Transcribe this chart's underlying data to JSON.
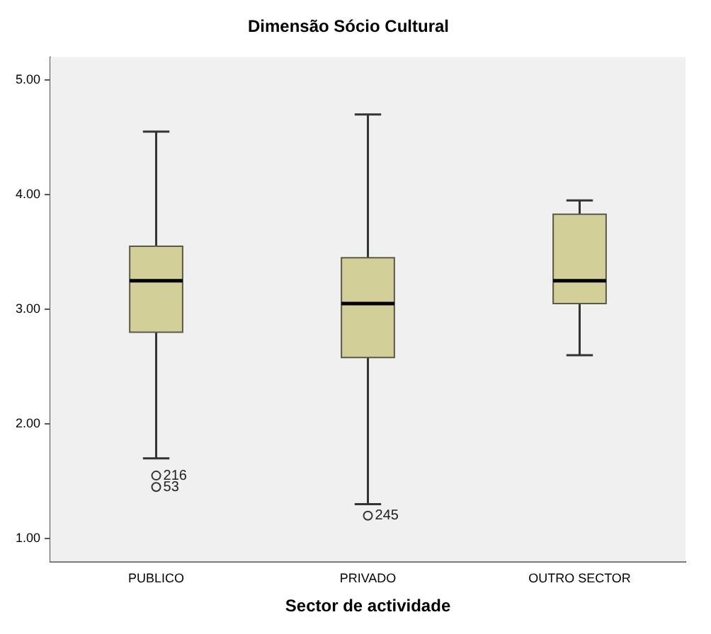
{
  "chart_data": {
    "type": "box",
    "title": "Dimensão Sócio Cultural",
    "xlabel": "Sector de actividade",
    "categories": [
      "PUBLICO",
      "PRIVADO",
      "OUTRO SECTOR"
    ],
    "series": [
      {
        "color": "#d3cf98",
        "boxes": [
          {
            "low": 1.7,
            "q1": 2.8,
            "median": 3.25,
            "q3": 3.55,
            "high": 4.55,
            "outliers": [
              1.55,
              1.45
            ]
          },
          {
            "low": 1.3,
            "q1": 2.58,
            "median": 3.05,
            "q3": 3.45,
            "high": 4.7,
            "outliers": [
              1.2
            ]
          },
          {
            "low": 2.6,
            "q1": 3.05,
            "median": 3.25,
            "q3": 3.83,
            "high": 3.95
          }
        ]
      }
    ],
    "ylim": [
      0.8,
      5.2
    ],
    "yticks": [
      {
        "value": 1,
        "label": "1.00"
      },
      {
        "value": 2,
        "label": "2.00"
      },
      {
        "value": 3,
        "label": "3.00"
      },
      {
        "value": 4,
        "label": "4.00"
      },
      {
        "value": 5,
        "label": "5.00"
      }
    ],
    "grid": false,
    "annotations": [
      "216",
      "53",
      "245"
    ]
  }
}
